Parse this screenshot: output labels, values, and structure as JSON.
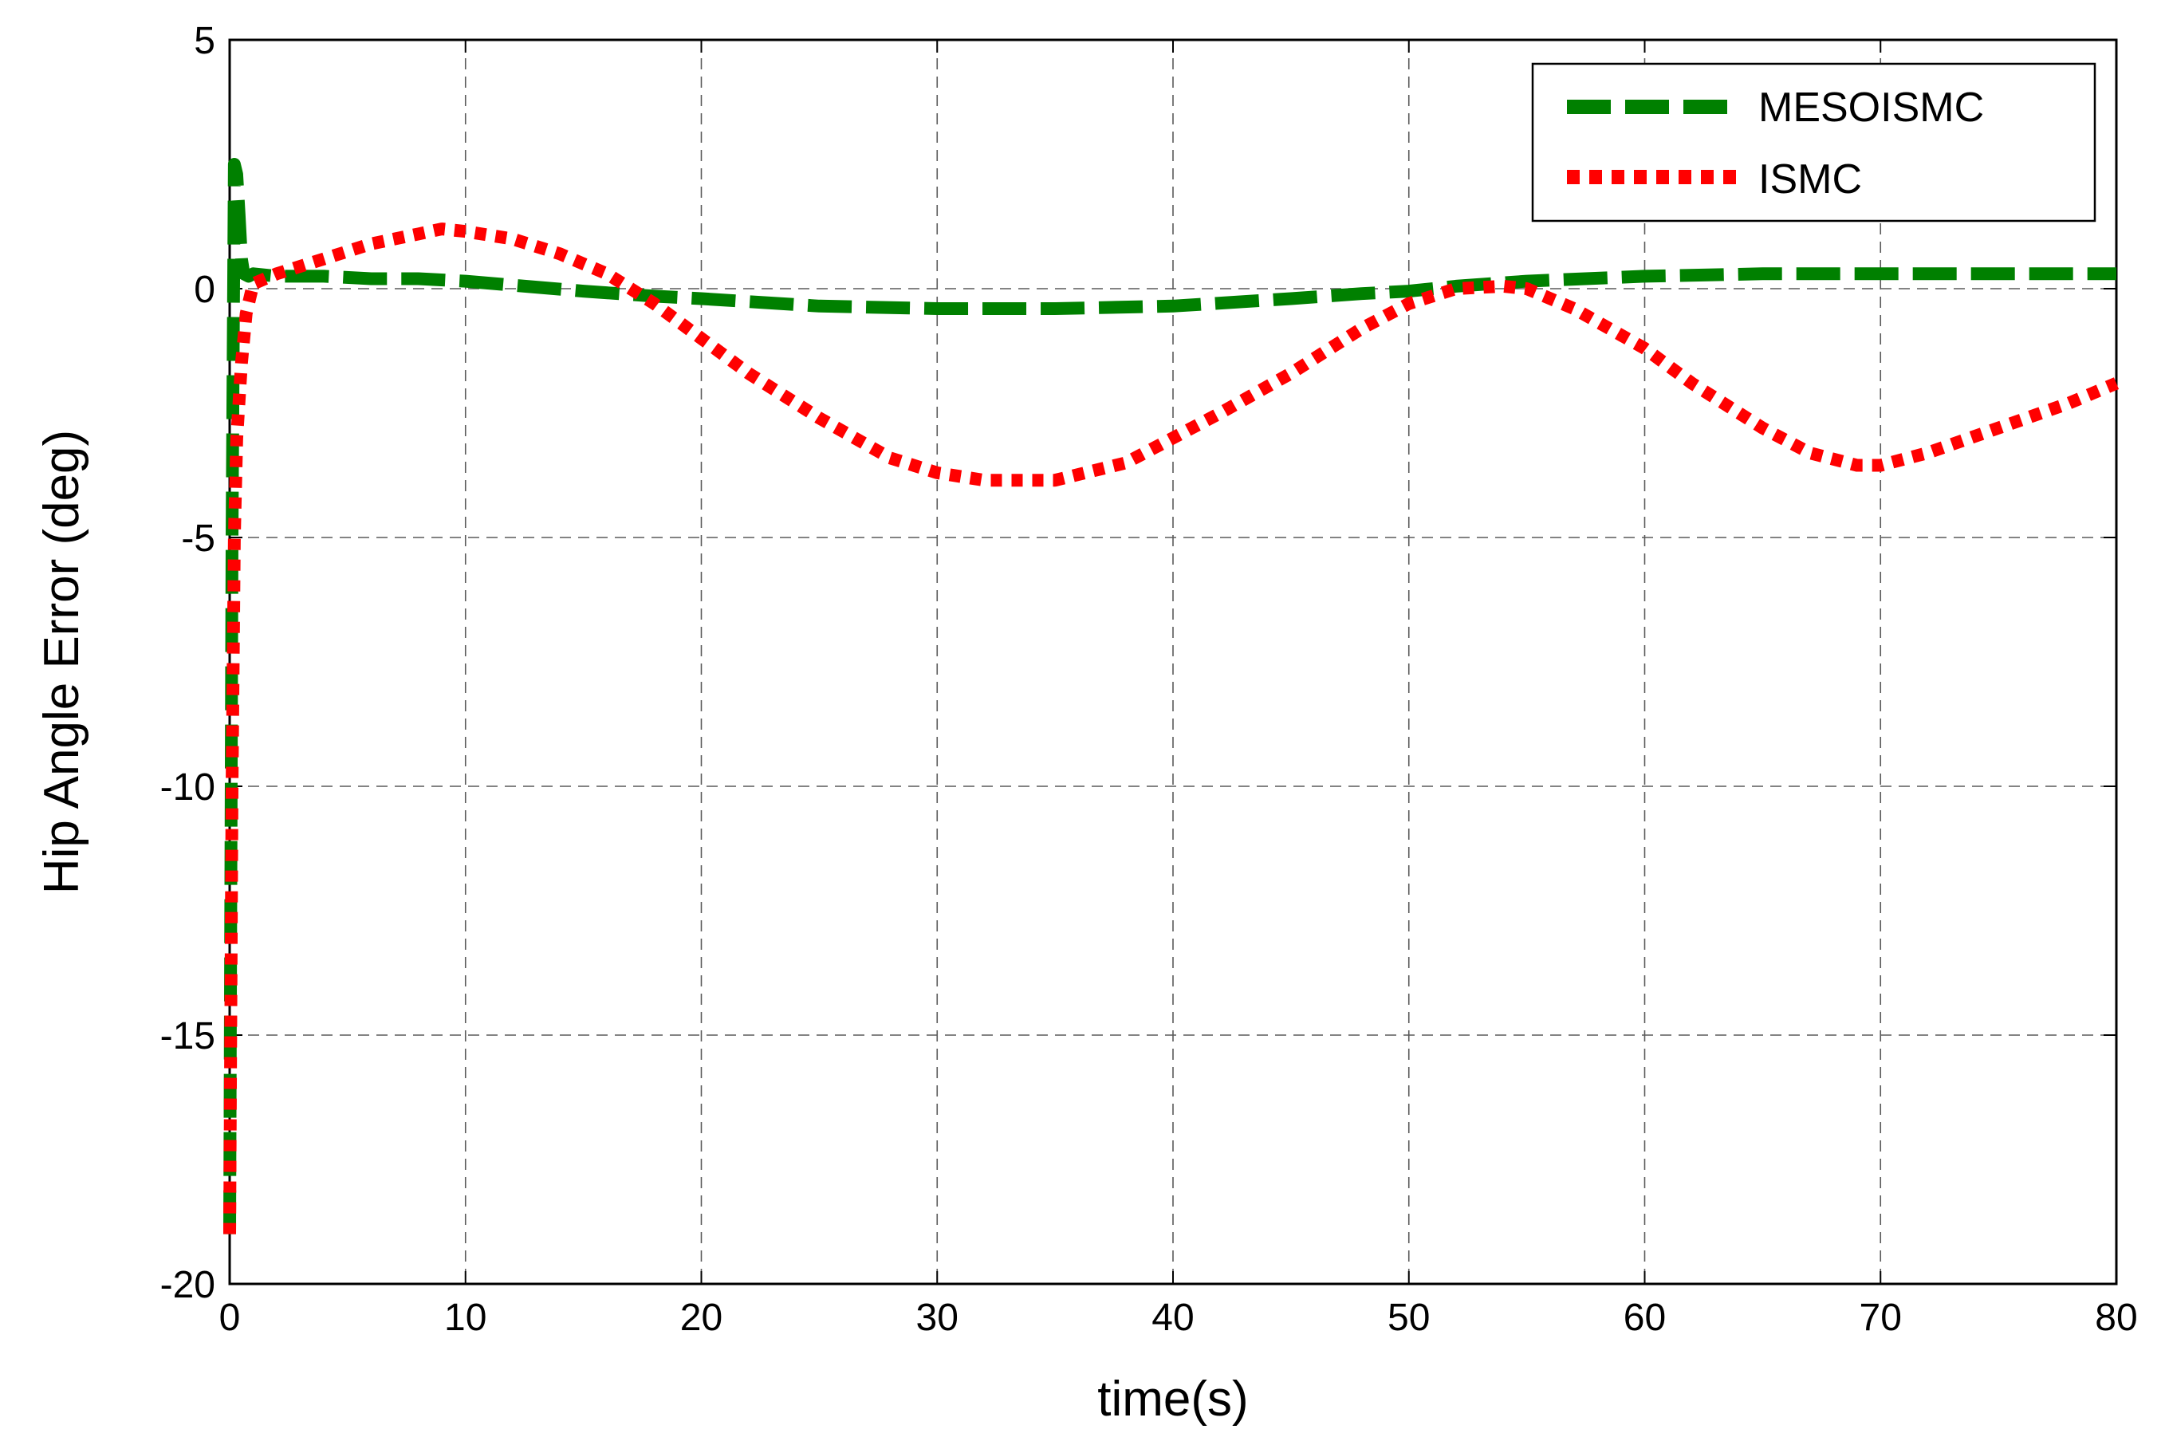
{
  "chart_data": {
    "type": "line",
    "xlabel": "time(s)",
    "ylabel": "Hip Angle Error (deg)",
    "xlim": [
      0,
      80
    ],
    "ylim": [
      -20,
      5
    ],
    "xticks": [
      0,
      10,
      20,
      30,
      40,
      50,
      60,
      70,
      80
    ],
    "yticks": [
      -20,
      -15,
      -10,
      -5,
      0,
      5
    ],
    "xtick_labels": [
      "0",
      "10",
      "20",
      "30",
      "40",
      "50",
      "60",
      "70",
      "80"
    ],
    "ytick_labels": [
      "-20",
      "-15",
      "-10",
      "-5",
      "0",
      "5"
    ],
    "grid": true,
    "legend_position": "top-right",
    "series": [
      {
        "name": "MESOISMC",
        "color": "#008000",
        "style": "dashed",
        "x": [
          0,
          0.1,
          0.2,
          0.3,
          0.4,
          0.5,
          0.6,
          0.8,
          1,
          2,
          4,
          6,
          8,
          10,
          15,
          18,
          20,
          25,
          30,
          35,
          40,
          45,
          48,
          50,
          52,
          55,
          60,
          65,
          70,
          75,
          80
        ],
        "y": [
          -19,
          -5,
          2.5,
          2.3,
          1.5,
          0.6,
          0.3,
          0.25,
          0.3,
          0.25,
          0.25,
          0.2,
          0.2,
          0.15,
          -0.05,
          -0.15,
          -0.2,
          -0.35,
          -0.4,
          -0.4,
          -0.35,
          -0.2,
          -0.1,
          -0.05,
          0.05,
          0.15,
          0.25,
          0.3,
          0.3,
          0.3,
          0.3
        ]
      },
      {
        "name": "ISMC",
        "color": "#ff0000",
        "style": "dotted",
        "x": [
          0,
          0.1,
          0.2,
          0.3,
          0.5,
          0.7,
          1,
          2,
          4,
          6,
          8,
          9,
          10,
          12,
          14,
          16,
          18,
          20,
          22,
          25,
          28,
          30,
          32,
          35,
          38,
          40,
          42,
          45,
          48,
          50,
          52,
          54,
          55,
          57,
          60,
          62,
          65,
          67,
          69,
          70,
          72,
          75,
          78,
          80
        ],
        "y": [
          -19,
          -10,
          -5,
          -3,
          -1.5,
          -0.5,
          0.1,
          0.3,
          0.6,
          0.9,
          1.1,
          1.2,
          1.15,
          1,
          0.7,
          0.3,
          -0.3,
          -1,
          -1.7,
          -2.6,
          -3.4,
          -3.7,
          -3.85,
          -3.85,
          -3.5,
          -3.0,
          -2.5,
          -1.7,
          -0.8,
          -0.3,
          0.0,
          0.05,
          0.0,
          -0.4,
          -1.2,
          -1.9,
          -2.8,
          -3.3,
          -3.55,
          -3.55,
          -3.3,
          -2.8,
          -2.3,
          -1.9
        ]
      }
    ]
  }
}
